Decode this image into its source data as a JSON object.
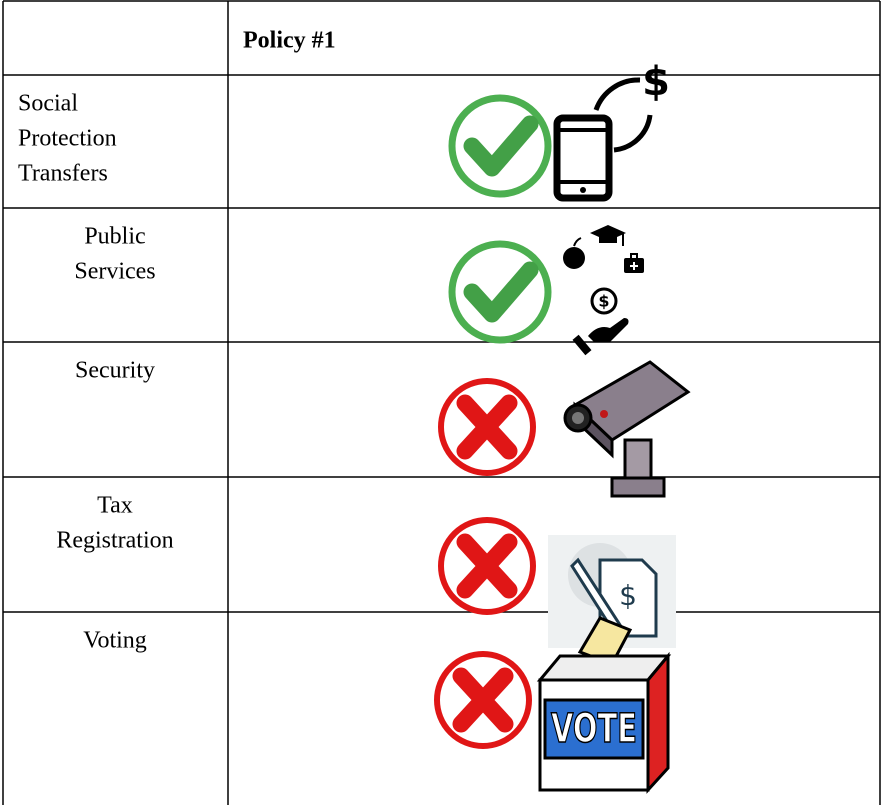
{
  "table": {
    "header": [
      "",
      "Policy #1"
    ],
    "rows": [
      {
        "label": [
          "Social",
          "Protection",
          "Transfers"
        ],
        "icon_text": "$"
      },
      {
        "label": [
          "Public",
          "Services"
        ],
        "icon_text": "$"
      },
      {
        "label": [
          "Security"
        ]
      },
      {
        "label": [
          "Tax",
          "Registration"
        ],
        "icon_text": "$"
      },
      {
        "label": [
          "Voting"
        ],
        "icon_text": "VOTE"
      }
    ]
  }
}
